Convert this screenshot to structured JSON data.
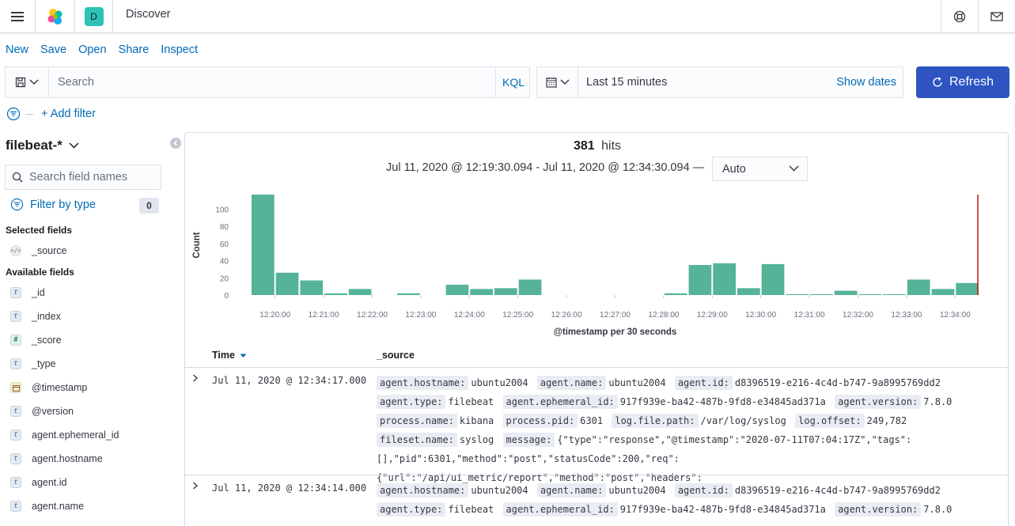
{
  "header": {
    "space_initial": "D",
    "breadcrumb": "Discover"
  },
  "top_nav": {
    "new": "New",
    "save": "Save",
    "open": "Open",
    "share": "Share",
    "inspect": "Inspect"
  },
  "query": {
    "placeholder": "Search",
    "language": "KQL"
  },
  "time": {
    "range": "Last 15 minutes",
    "show_dates": "Show dates",
    "refresh": "Refresh"
  },
  "filter": {
    "add": "+ Add filter"
  },
  "sidebar": {
    "index_pattern": "filebeat-*",
    "search_placeholder": "Search field names",
    "filter_by_type": "Filter by type",
    "filter_count": "0",
    "selected_heading": "Selected fields",
    "available_heading": "Available fields",
    "selected": [
      {
        "name": "_source",
        "type": "source"
      }
    ],
    "available": [
      {
        "name": "_id",
        "type": "t"
      },
      {
        "name": "_index",
        "type": "t"
      },
      {
        "name": "_score",
        "type": "#"
      },
      {
        "name": "_type",
        "type": "t"
      },
      {
        "name": "@timestamp",
        "type": "date"
      },
      {
        "name": "@version",
        "type": "t"
      },
      {
        "name": "agent.ephemeral_id",
        "type": "t"
      },
      {
        "name": "agent.hostname",
        "type": "t"
      },
      {
        "name": "agent.id",
        "type": "t"
      },
      {
        "name": "agent.name",
        "type": "t"
      }
    ]
  },
  "results": {
    "hits": "381",
    "hits_label": "hits",
    "range": "Jul 11, 2020 @ 12:19:30.094 - Jul 11, 2020 @ 12:34:30.094 —",
    "interval": "Auto",
    "columns": {
      "time": "Time",
      "source": "_source"
    }
  },
  "chart_data": {
    "type": "bar",
    "ylabel": "Count",
    "xlabel": "@timestamp per 30 seconds",
    "yticks": [
      0,
      20,
      40,
      60,
      80,
      100
    ],
    "ylim": [
      0,
      117
    ],
    "x_tick_labels": [
      "12:20:00",
      "12:21:00",
      "12:22:00",
      "12:23:00",
      "12:24:00",
      "12:25:00",
      "12:26:00",
      "12:27:00",
      "12:28:00",
      "12:29:00",
      "12:30:00",
      "12:31:00",
      "12:32:00",
      "12:33:00",
      "12:34:00"
    ],
    "bucket_start": [
      "12:19:30",
      "12:20:00",
      "12:20:30",
      "12:21:00",
      "12:21:30",
      "12:22:00",
      "12:22:30",
      "12:23:00",
      "12:23:30",
      "12:24:00",
      "12:24:30",
      "12:25:00",
      "12:25:30",
      "12:26:00",
      "12:26:30",
      "12:27:00",
      "12:27:30",
      "12:28:00",
      "12:28:30",
      "12:29:00",
      "12:29:30",
      "12:30:00",
      "12:30:30",
      "12:31:00",
      "12:31:30",
      "12:32:00",
      "12:32:30",
      "12:33:00",
      "12:33:30",
      "12:34:00"
    ],
    "values": [
      117,
      26,
      17,
      2,
      7,
      0,
      2,
      0,
      12,
      7,
      8,
      18,
      0,
      0,
      0,
      0,
      0,
      2,
      35,
      37,
      8,
      36,
      1,
      1,
      5,
      1,
      1,
      18,
      7,
      14
    ],
    "bar_color": "#54b399",
    "now_marker_color": "#bd271e"
  },
  "docs": [
    {
      "time": "Jul 11, 2020 @ 12:34:17.000",
      "fields": [
        {
          "k": "agent.hostname:",
          "v": "ubuntu2004"
        },
        {
          "k": "agent.name:",
          "v": "ubuntu2004"
        },
        {
          "k": "agent.id:",
          "v": "d8396519-e216-4c4d-b747-9a8995769dd2"
        },
        {
          "k": "agent.type:",
          "v": "filebeat"
        },
        {
          "k": "agent.ephemeral_id:",
          "v": "917f939e-ba42-487b-9fd8-e34845ad371a"
        },
        {
          "k": "agent.version:",
          "v": "7.8.0"
        },
        {
          "k": "process.name:",
          "v": "kibana"
        },
        {
          "k": "process.pid:",
          "v": "6301"
        },
        {
          "k": "log.file.path:",
          "v": "/var/log/syslog"
        },
        {
          "k": "log.offset:",
          "v": "249,782"
        },
        {
          "k": "fileset.name:",
          "v": "syslog"
        },
        {
          "k": "message:",
          "v": "{\"type\":\"response\",\"@timestamp\":\"2020-07-11T07:04:17Z\",\"tags\":[],\"pid\":6301,\"method\":\"post\",\"statusCode\":200,\"req\":{\"url\":\"/api/ui_metric/report\",\"method\":\"post\",\"headers\":"
        }
      ]
    },
    {
      "time": "Jul 11, 2020 @ 12:34:14.000",
      "fields": [
        {
          "k": "agent.hostname:",
          "v": "ubuntu2004"
        },
        {
          "k": "agent.name:",
          "v": "ubuntu2004"
        },
        {
          "k": "agent.id:",
          "v": "d8396519-e216-4c4d-b747-9a8995769dd2"
        },
        {
          "k": "agent.type:",
          "v": "filebeat"
        },
        {
          "k": "agent.ephemeral_id:",
          "v": "917f939e-ba42-487b-9fd8-e34845ad371a"
        },
        {
          "k": "agent.version:",
          "v": "7.8.0"
        }
      ]
    }
  ]
}
